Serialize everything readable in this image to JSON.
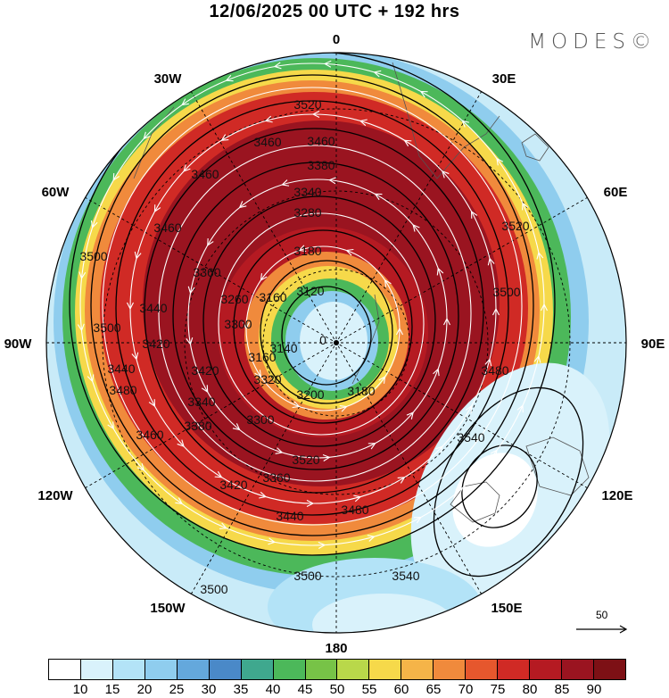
{
  "title": "12/06/2025  00 UTC  + 192 hrs",
  "logo": "MODES©",
  "longitude_labels": {
    "top": "0",
    "bottom": "180",
    "left": "90W",
    "right": "90E",
    "upper_left_30": "30W",
    "upper_left_60": "60W",
    "upper_right_30": "30E",
    "upper_right_60": "60E",
    "lower_left_120": "120W",
    "lower_left_150": "150W",
    "lower_right_120": "120E",
    "lower_right_150": "150E"
  },
  "contour_labels": [
    "3520",
    "3460",
    "3460",
    "3380",
    "3340",
    "3280",
    "3180",
    "3120",
    "3160",
    "3140",
    "3260",
    "3360",
    "3440",
    "3460",
    "3460",
    "3500",
    "3500",
    "3440",
    "3420",
    "3480",
    "3460",
    "3420",
    "3340",
    "3380",
    "3300",
    "3300",
    "3320",
    "3200",
    "3180",
    "3160",
    "3360",
    "3420",
    "3440",
    "3480",
    "3500",
    "3500",
    "3540",
    "3540",
    "3520",
    "3520",
    "3500",
    "3480",
    "0"
  ],
  "vector_reference": {
    "label": "50"
  },
  "colorbar": {
    "colors": [
      "#ffffff",
      "#d9f2fb",
      "#b3e3f7",
      "#8fcdee",
      "#64a8dc",
      "#4a89c8",
      "#3fa88e",
      "#4cb85a",
      "#77c347",
      "#b9d84a",
      "#f6d94a",
      "#f5b448",
      "#f08a3c",
      "#e6572d",
      "#d02a25",
      "#b51a22",
      "#9a1420",
      "#7d1015"
    ],
    "labels": [
      "10",
      "15",
      "20",
      "25",
      "30",
      "35",
      "40",
      "45",
      "50",
      "55",
      "60",
      "65",
      "70",
      "75",
      "80",
      "85",
      "90"
    ]
  }
}
